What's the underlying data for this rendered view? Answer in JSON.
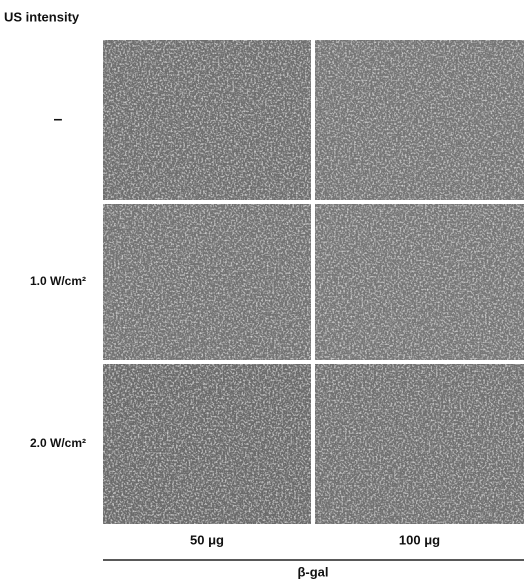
{
  "header": {
    "title": "US intensity"
  },
  "rows": [
    {
      "label": "–"
    },
    {
      "label": "1.0 W/cm²"
    },
    {
      "label": "2.0 W/cm²"
    }
  ],
  "columns": [
    {
      "label": "50 μg"
    },
    {
      "label": "100 μg"
    }
  ],
  "axis_label": "β-gal"
}
